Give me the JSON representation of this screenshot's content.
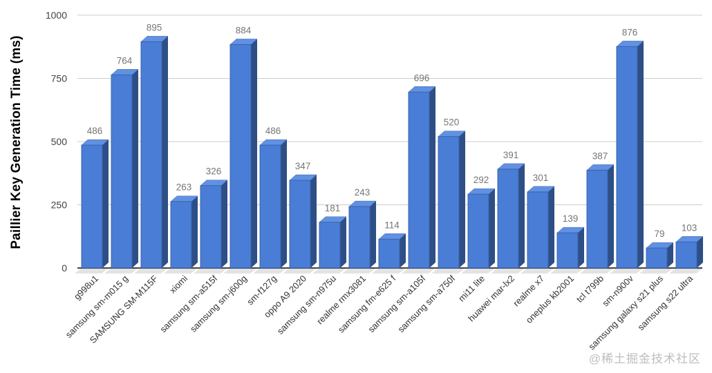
{
  "chart_data": {
    "type": "bar",
    "variant": "3d-column",
    "title": "",
    "xlabel": "",
    "ylabel": "Paillier Key Generation Time (ms)",
    "categories": [
      "g998u1",
      "samsung sm-m015 g",
      "SAMSUNG SM-M115F",
      "xiomi",
      "samsung sm-a515f",
      "samsung sm-j600g",
      "sm-f127g",
      "oppo A9 2020",
      "samsung sm-n975u",
      "realme rmx3081",
      "samsung fm-e625 f",
      "samsung sm-a105f",
      "samsung sm-a750f",
      "mi11 lite",
      "huawei mar-lx2",
      "realme x7",
      "oneplus kb2001",
      "tcl t799b",
      "sm-n900v",
      "samsung galaxy s21 plus",
      "samsung s22 ultra"
    ],
    "values": [
      486,
      764,
      895,
      263,
      326,
      884,
      486,
      347,
      181,
      243,
      114,
      696,
      520,
      292,
      391,
      301,
      139,
      387,
      876,
      79,
      103
    ],
    "y_ticks": [
      0,
      250,
      500,
      750,
      1000
    ],
    "ylim": [
      0,
      1000
    ],
    "grid": true,
    "legend_position": "none",
    "value_labels_shown": true,
    "colors": {
      "bar_front": "#4a7dd6",
      "bar_top": "#6191e2",
      "bar_side": "#2e4f86",
      "bar_outline": "#3a64ab",
      "floor_shadow": "#e3e3e3",
      "gridline": "#cccccc",
      "baseline": "#424242",
      "value_label": "#757575",
      "x_tick_label": "#333333",
      "y_tick_label": "#424242",
      "axis_title": "#000000",
      "watermark": "#bdbdbd",
      "background": "#ffffff"
    }
  },
  "watermark": {
    "text": "@稀土掘金技术社区"
  }
}
